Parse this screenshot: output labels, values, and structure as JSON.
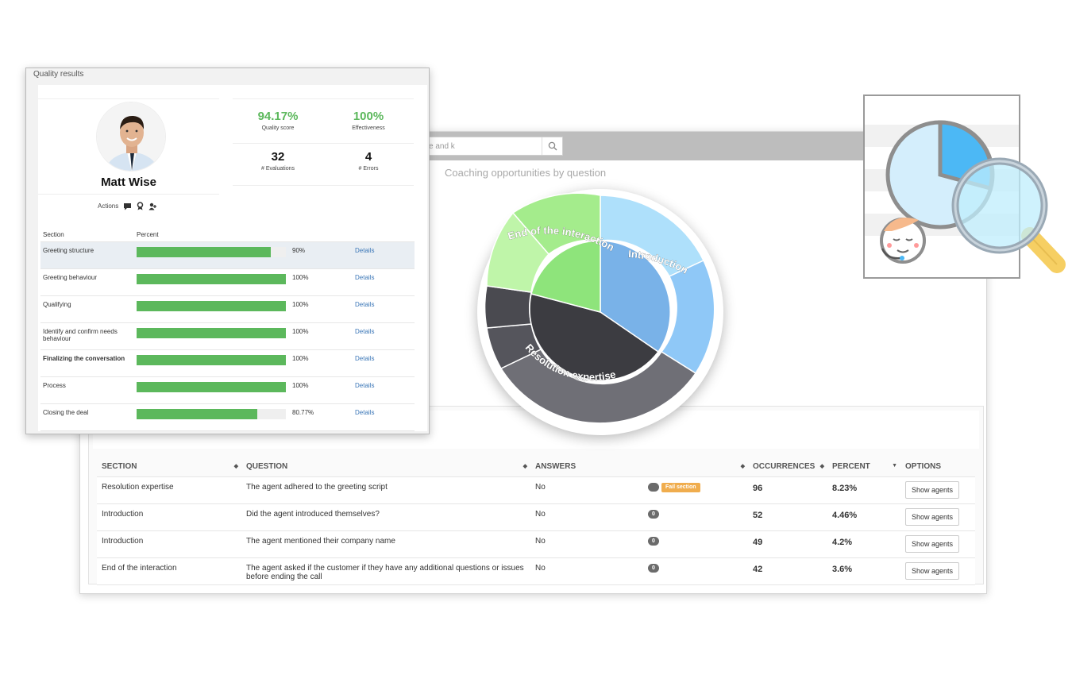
{
  "search": {
    "placeholder": "e and k"
  },
  "coaching": {
    "title": "Coaching opportunities by question",
    "segments": [
      {
        "label": "Introduction",
        "color": "#7ab3ea"
      },
      {
        "label": "Resolution expertise",
        "color": "#3d3d42"
      },
      {
        "label": "End of the interaction",
        "color": "#8ee07c"
      }
    ]
  },
  "table": {
    "headers": {
      "section": "SECTION",
      "question": "QUESTION",
      "answers": "ANSWERS",
      "occurrences": "OCCURRENCES",
      "percent": "PERCENT",
      "options": "OPTIONS"
    },
    "rows": [
      {
        "section": "Resolution expertise",
        "question": "The agent adhered to the greeting script",
        "answer": "No",
        "badge": "",
        "fail": "Fail section",
        "occurrences": "96",
        "percent": "8.23%",
        "button": "Show agents"
      },
      {
        "section": "Introduction",
        "question": "Did the agent introduced themselves?",
        "answer": "No",
        "badge": "0",
        "fail": "",
        "occurrences": "52",
        "percent": "4.46%",
        "button": "Show agents"
      },
      {
        "section": "Introduction",
        "question": "The agent mentioned their company name",
        "answer": "No",
        "badge": "0",
        "fail": "",
        "occurrences": "49",
        "percent": "4.2%",
        "button": "Show agents"
      },
      {
        "section": "End of the interaction",
        "question": "The agent asked if the customer if they have any additional questions or issues before ending the call",
        "answer": "No",
        "badge": "0",
        "fail": "",
        "occurrences": "42",
        "percent": "3.6%",
        "button": "Show agents"
      }
    ]
  },
  "quality": {
    "title": "Quality results",
    "agent_name": "Matt Wise",
    "actions_label": "Actions",
    "stats": {
      "quality_score": {
        "value": "94.17%",
        "label": "Quality score"
      },
      "effectiveness": {
        "value": "100%",
        "label": "Effectiveness"
      },
      "evaluations": {
        "value": "32",
        "label": "# Evaluations"
      },
      "errors": {
        "value": "4",
        "label": "# Errors"
      }
    },
    "columns": {
      "section": "Section",
      "percent": "Percent"
    },
    "details_label": "Details",
    "sections": [
      {
        "name": "Greeting structure",
        "percent": "90%",
        "fraction": 0.9,
        "bold": false,
        "highlight": true
      },
      {
        "name": "Greeting behaviour",
        "percent": "100%",
        "fraction": 1.0,
        "bold": false,
        "highlight": false
      },
      {
        "name": "Qualifying",
        "percent": "100%",
        "fraction": 1.0,
        "bold": false,
        "highlight": false
      },
      {
        "name": "Identify and confirm needs behaviour",
        "percent": "100%",
        "fraction": 1.0,
        "bold": false,
        "highlight": false
      },
      {
        "name": "Finalizing the conversation",
        "percent": "100%",
        "fraction": 1.0,
        "bold": true,
        "highlight": false
      },
      {
        "name": "Process",
        "percent": "100%",
        "fraction": 1.0,
        "bold": false,
        "highlight": false
      },
      {
        "name": "Closing the deal",
        "percent": "80.77%",
        "fraction": 0.8077,
        "bold": false,
        "highlight": false
      }
    ]
  }
}
